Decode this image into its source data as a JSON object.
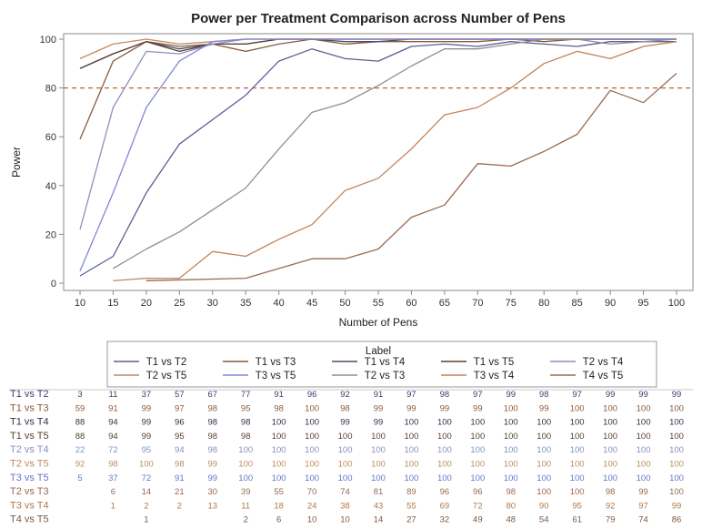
{
  "chart_data": {
    "type": "line",
    "title": "Power per Treatment Comparison across Number of Pens",
    "xlabel": "Number of Pens",
    "ylabel": "Power",
    "x": [
      10,
      15,
      20,
      25,
      30,
      35,
      40,
      45,
      50,
      55,
      60,
      65,
      70,
      75,
      80,
      85,
      90,
      95,
      100
    ],
    "xlim": [
      10,
      100
    ],
    "ylim": [
      0,
      100
    ],
    "yticks": [
      0,
      20,
      40,
      60,
      80,
      100
    ],
    "reference_line": {
      "y": 80,
      "color": "#b0683a",
      "style": "dashed"
    },
    "grid": false,
    "legend_title": "Label",
    "legend_placement": "bottom",
    "series": [
      {
        "name": "T1 vs T2",
        "color": "#5b5f93",
        "values": [
          3,
          11,
          37,
          57,
          67,
          77,
          91,
          96,
          92,
          91,
          97,
          98,
          97,
          99,
          98,
          97,
          99,
          99,
          99
        ]
      },
      {
        "name": "T1 vs T3",
        "color": "#8a5a3c",
        "values": [
          59,
          91,
          99,
          97,
          98,
          95,
          98,
          100,
          98,
          99,
          99,
          99,
          99,
          100,
          99,
          100,
          100,
          100,
          100
        ]
      },
      {
        "name": "T1 vs T4",
        "color": "#4b4f63",
        "values": [
          88,
          94,
          99,
          96,
          98,
          98,
          100,
          100,
          99,
          99,
          100,
          100,
          100,
          100,
          100,
          100,
          100,
          100,
          100
        ]
      },
      {
        "name": "T1 vs T5",
        "color": "#5a4030",
        "values": [
          88,
          94,
          99,
          95,
          98,
          98,
          100,
          100,
          100,
          100,
          100,
          100,
          100,
          100,
          100,
          100,
          100,
          100,
          100
        ]
      },
      {
        "name": "T2 vs T4",
        "color": "#8a8fbf",
        "values": [
          22,
          72,
          95,
          94,
          98,
          100,
          100,
          100,
          100,
          100,
          100,
          100,
          100,
          100,
          100,
          100,
          100,
          100,
          100
        ]
      },
      {
        "name": "T2 vs T5",
        "color": "#c08a60",
        "values": [
          92,
          98,
          100,
          98,
          99,
          100,
          100,
          100,
          100,
          100,
          100,
          100,
          100,
          100,
          100,
          100,
          100,
          100,
          100
        ]
      },
      {
        "name": "T3 vs T5",
        "color": "#7f86d6",
        "values": [
          5,
          37,
          72,
          91,
          99,
          100,
          100,
          100,
          100,
          100,
          100,
          100,
          100,
          100,
          100,
          100,
          100,
          100,
          100
        ]
      },
      {
        "name": "T2 vs T3",
        "color": "#8f8f8f",
        "values": [
          null,
          6,
          14,
          21,
          30,
          39,
          55,
          70,
          74,
          81,
          89,
          96,
          96,
          98,
          100,
          100,
          98,
          99,
          100
        ]
      },
      {
        "name": "T3 vs T4",
        "color": "#c0845a",
        "values": [
          null,
          1,
          2,
          2,
          13,
          11,
          18,
          24,
          38,
          43,
          55,
          69,
          72,
          80,
          90,
          95,
          92,
          97,
          99
        ]
      },
      {
        "name": "T4 vs T5",
        "color": "#9a6a4f",
        "values": [
          null,
          null,
          1,
          null,
          null,
          2,
          6,
          10,
          10,
          14,
          27,
          32,
          49,
          48,
          54,
          61,
          79,
          74,
          86
        ]
      }
    ],
    "table_label_colors": [
      "#3b3f6e",
      "#8a5a3c",
      "#2f3348",
      "#5a4030",
      "#8a8fbf",
      "#c08a60",
      "#6a72c8",
      "#9a6a4f",
      "#b07a4a",
      "#7a5a42"
    ]
  }
}
